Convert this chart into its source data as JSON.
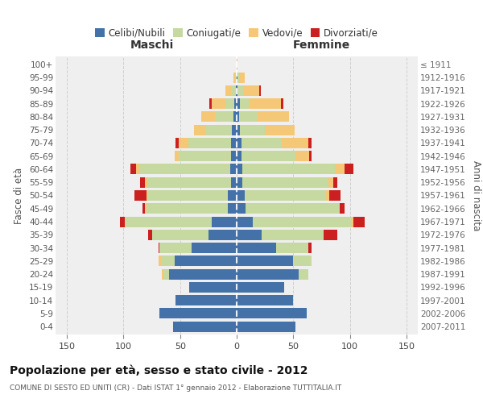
{
  "age_groups": [
    "0-4",
    "5-9",
    "10-14",
    "15-19",
    "20-24",
    "25-29",
    "30-34",
    "35-39",
    "40-44",
    "45-49",
    "50-54",
    "55-59",
    "60-64",
    "65-69",
    "70-74",
    "75-79",
    "80-84",
    "85-89",
    "90-94",
    "95-99",
    "100+"
  ],
  "birth_years": [
    "2007-2011",
    "2002-2006",
    "1997-2001",
    "1992-1996",
    "1987-1991",
    "1982-1986",
    "1977-1981",
    "1972-1976",
    "1967-1971",
    "1962-1966",
    "1957-1961",
    "1952-1956",
    "1947-1951",
    "1942-1946",
    "1937-1941",
    "1932-1936",
    "1927-1931",
    "1922-1926",
    "1917-1921",
    "1912-1916",
    "≤ 1911"
  ],
  "colors": {
    "celibi": "#4472a8",
    "coniugati": "#c5d9a0",
    "vedovi": "#f5c878",
    "divorziati": "#cc2020"
  },
  "male": {
    "celibi": [
      56,
      68,
      54,
      42,
      60,
      55,
      40,
      25,
      22,
      8,
      8,
      5,
      6,
      5,
      5,
      4,
      3,
      2,
      1,
      0,
      0
    ],
    "coniugati": [
      0,
      0,
      0,
      0,
      5,
      12,
      28,
      50,
      76,
      72,
      70,
      74,
      80,
      46,
      38,
      24,
      16,
      8,
      4,
      1,
      0
    ],
    "vedovi": [
      0,
      0,
      0,
      0,
      1,
      2,
      0,
      0,
      1,
      1,
      2,
      2,
      3,
      4,
      8,
      10,
      12,
      12,
      5,
      2,
      0
    ],
    "divorziati": [
      0,
      0,
      0,
      0,
      0,
      0,
      1,
      3,
      4,
      2,
      10,
      4,
      5,
      0,
      3,
      0,
      0,
      2,
      0,
      0,
      0
    ]
  },
  "female": {
    "celibi": [
      52,
      62,
      50,
      42,
      55,
      50,
      35,
      22,
      14,
      8,
      7,
      5,
      5,
      4,
      4,
      3,
      2,
      3,
      1,
      1,
      0
    ],
    "coniugati": [
      0,
      0,
      0,
      0,
      8,
      16,
      28,
      55,
      88,
      82,
      72,
      76,
      82,
      48,
      35,
      22,
      16,
      8,
      5,
      1,
      0
    ],
    "vedovi": [
      0,
      0,
      0,
      0,
      0,
      0,
      0,
      0,
      1,
      1,
      3,
      4,
      8,
      12,
      24,
      26,
      28,
      28,
      14,
      5,
      1
    ],
    "divorziati": [
      0,
      0,
      0,
      0,
      0,
      0,
      3,
      12,
      10,
      4,
      10,
      4,
      8,
      2,
      3,
      0,
      0,
      2,
      1,
      0,
      0
    ]
  },
  "xlim": 160,
  "title": "Popolazione per età, sesso e stato civile - 2012",
  "subtitle": "COMUNE DI SESTO ED UNITI (CR) - Dati ISTAT 1° gennaio 2012 - Elaborazione TUTTITALIA.IT",
  "ylabel_left": "Fasce di età",
  "ylabel_right": "Anni di nascita",
  "xlabel_left": "Maschi",
  "xlabel_right": "Femmine",
  "legend_labels": [
    "Celibi/Nubili",
    "Coniugati/e",
    "Vedovi/e",
    "Divorziati/e"
  ],
  "bg_color": "#efefef",
  "grid_color": "#cccccc"
}
